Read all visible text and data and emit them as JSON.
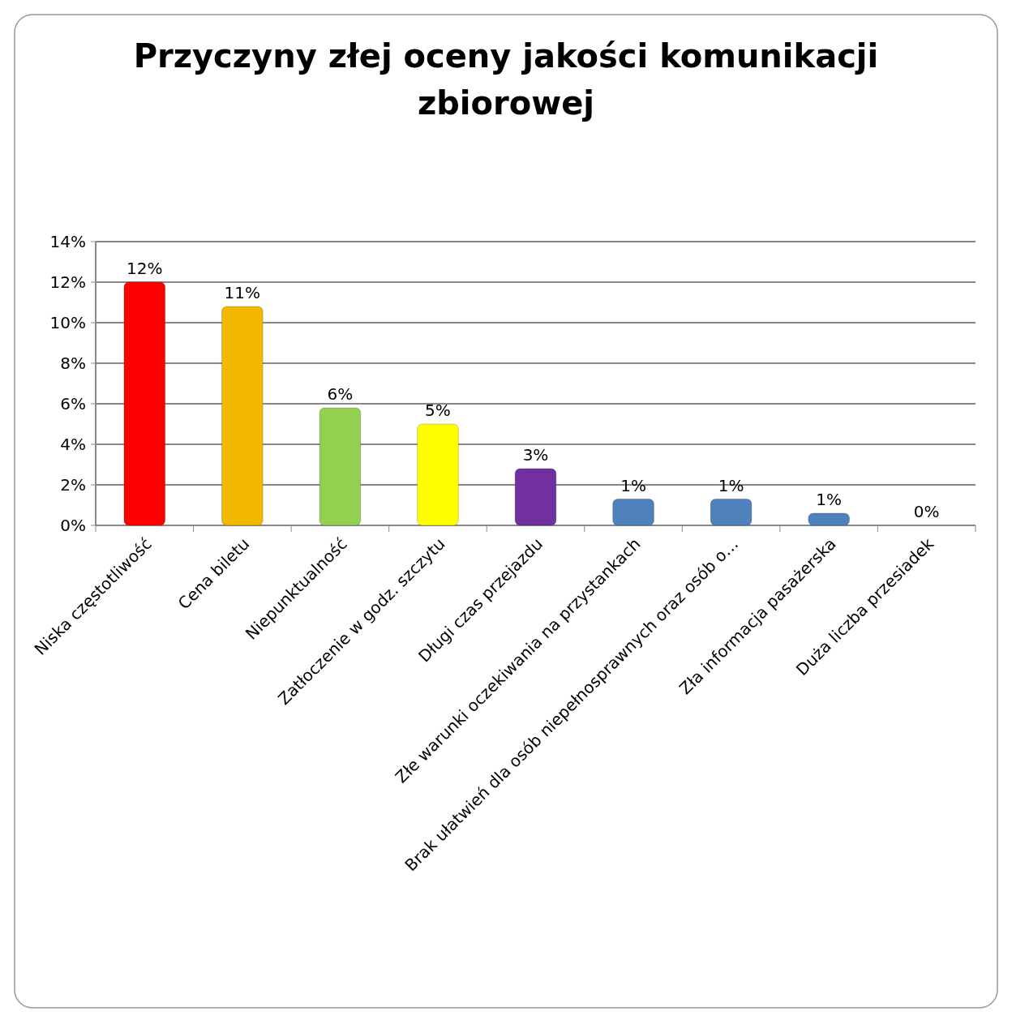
{
  "chart_data": {
    "type": "bar",
    "title": "Przyczyny złej oceny jakości komunikacji zbiorowej",
    "categories": [
      "Niska częstotliwość",
      "Cena biletu",
      "Niepunktualność",
      "Zatłoczenie w godz. szczytu",
      "Długi czas przejazdu",
      "Złe warunki oczekiwania na przystankach",
      "Brak ułatwień dla osób niepełnosprawnych oraz osób o…",
      "Zła informacja pasażerska",
      "Duża liczba przesiadek"
    ],
    "values": [
      12,
      10.8,
      5.8,
      5,
      2.8,
      1.3,
      1.3,
      0.6,
      0
    ],
    "value_labels": [
      "12%",
      "11%",
      "6%",
      "5%",
      "3%",
      "1%",
      "1%",
      "1%",
      "0%"
    ],
    "colors": [
      "#ff0000",
      "#f5b800",
      "#92d050",
      "#ffff00",
      "#7030a0",
      "#4f81bd",
      "#4f81bd",
      "#4f81bd",
      "#1f4e79"
    ],
    "ylim": [
      0,
      14
    ],
    "yticks": [
      {
        "value": 0,
        "label": "0%"
      },
      {
        "value": 2,
        "label": "2%"
      },
      {
        "value": 4,
        "label": "4%"
      },
      {
        "value": 6,
        "label": "6%"
      },
      {
        "value": 8,
        "label": "8%"
      },
      {
        "value": 10,
        "label": "10%"
      },
      {
        "value": 12,
        "label": "12%"
      },
      {
        "value": 14,
        "label": "14%"
      }
    ],
    "grid": "y"
  }
}
